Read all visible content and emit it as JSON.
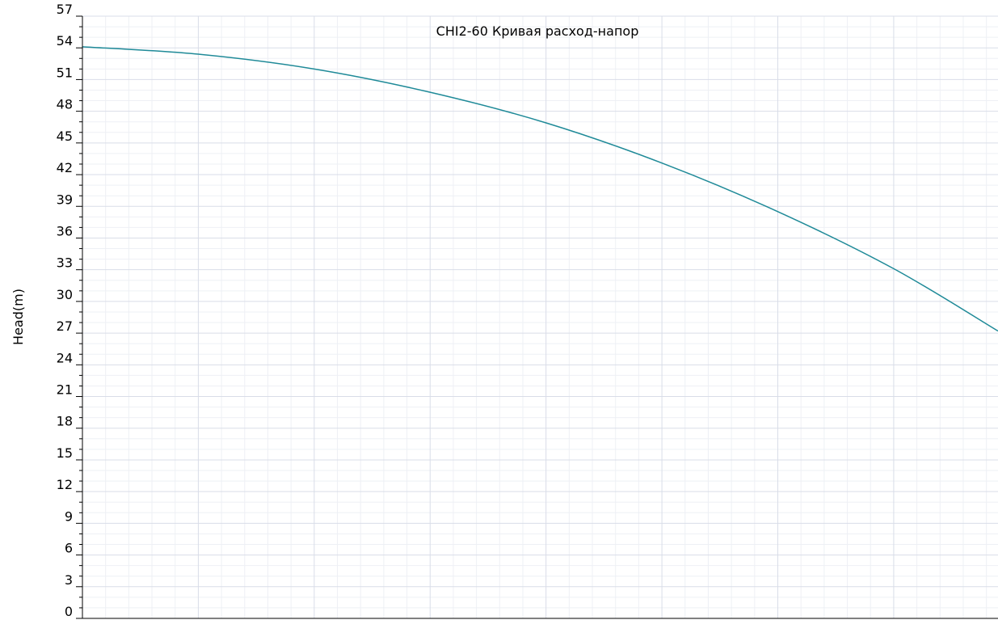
{
  "chart_data": {
    "type": "line",
    "title": "CHI2-60 Кривая расход-напор",
    "xlabel": "",
    "ylabel": "Head(m)",
    "ylim": [
      0,
      57
    ],
    "xlim": [
      0,
      3.95
    ],
    "y_ticks": [
      "0",
      "3",
      "6",
      "9",
      "12",
      "15",
      "18",
      "21",
      "24",
      "27",
      "30",
      "33",
      "36",
      "39",
      "42",
      "45",
      "48",
      "51",
      "54",
      "57"
    ],
    "grid": true,
    "colors": {
      "line": "#1f8a98",
      "grid_major": "#d9dde8",
      "grid_minor": "#eef0f5",
      "axis": "#000000"
    },
    "series": [
      {
        "x": [
          0,
          0.5,
          1.0,
          1.5,
          2.0,
          2.5,
          3.0,
          3.5,
          3.95
        ],
        "y": [
          54.1,
          53.4,
          52.0,
          49.8,
          46.9,
          43.1,
          38.5,
          33.1,
          27.2
        ]
      }
    ]
  }
}
